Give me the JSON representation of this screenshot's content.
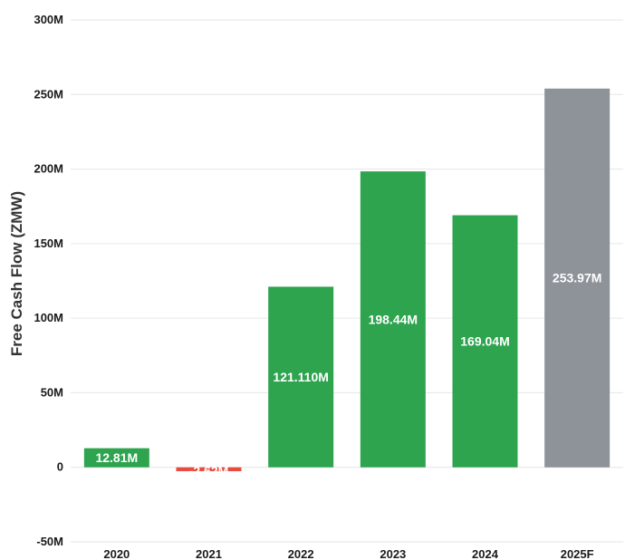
{
  "chart_data": {
    "type": "bar",
    "title": "",
    "xlabel": "",
    "ylabel": "Free Cash Flow (ZMW)",
    "categories": [
      "2020",
      "2021",
      "2022",
      "2023",
      "2024",
      "2025F"
    ],
    "values": [
      12.81,
      -2.62,
      121.11,
      198.44,
      169.04,
      253.97
    ],
    "data_labels": [
      "12.81M",
      "-2.62M",
      "121.110M",
      "198.44M",
      "169.04M",
      "253.97M"
    ],
    "bar_colors": [
      "#2ea44f",
      "#e84c3d",
      "#2ea44f",
      "#2ea44f",
      "#2ea44f",
      "#8e9299"
    ],
    "ylim": [
      -50,
      300
    ],
    "yticks": [
      -50,
      0,
      50,
      100,
      150,
      200,
      250,
      300
    ],
    "ytick_labels": [
      "-50M",
      "0",
      "50M",
      "100M",
      "150M",
      "200M",
      "250M",
      "300M"
    ],
    "grid": true,
    "legend": "none"
  }
}
